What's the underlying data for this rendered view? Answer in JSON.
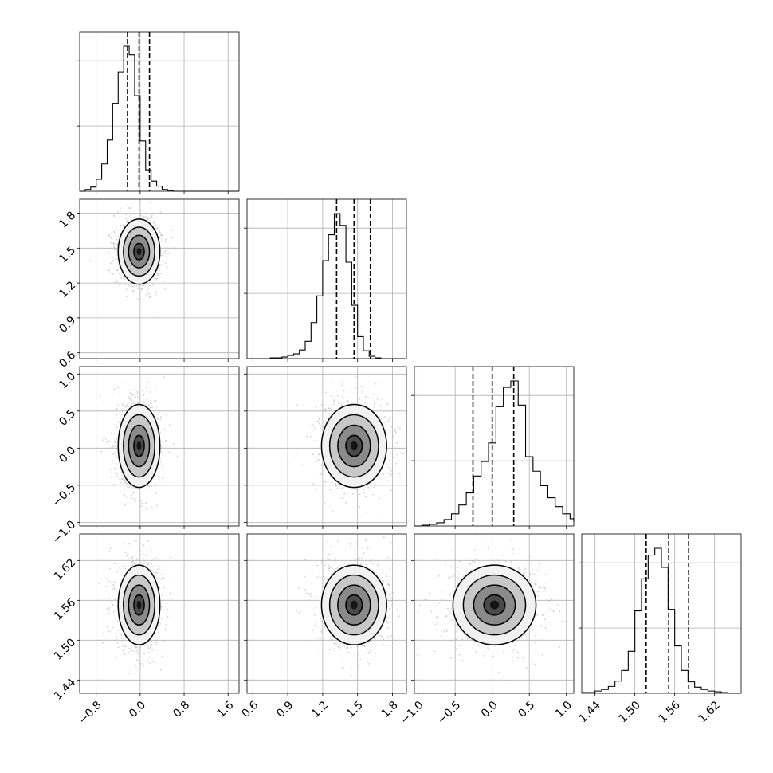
{
  "chart_data": {
    "type": "corner",
    "n_params": 4,
    "grid": true,
    "colors": {
      "line": "#000000",
      "grid": "#b0b0b0",
      "points": "#bdbdbd"
    },
    "params": [
      {
        "range": [
          -1.1,
          1.8
        ],
        "ticks": [
          -0.8,
          0.0,
          0.8,
          1.6
        ],
        "tick_labels": [
          "−0.8",
          "0.0",
          "0.8",
          "1.6"
        ],
        "mean": -0.02,
        "sd": 0.19,
        "quantiles": [
          -0.23,
          -0.02,
          0.17
        ]
      },
      {
        "range": [
          0.55,
          1.92
        ],
        "ticks": [
          0.6,
          0.9,
          1.2,
          1.5,
          1.8
        ],
        "tick_labels": [
          "0.6",
          "0.9",
          "1.2",
          "1.5",
          "1.8"
        ],
        "mean": 1.47,
        "sd": 0.14,
        "quantiles": [
          1.32,
          1.47,
          1.61
        ]
      },
      {
        "range": [
          -1.05,
          1.1
        ],
        "ticks": [
          -1.0,
          -0.5,
          0.0,
          0.5,
          1.0
        ],
        "tick_labels": [
          "−1.0",
          "−0.5",
          "0.0",
          "0.5",
          "1.0"
        ],
        "mean": 0.03,
        "sd": 0.28,
        "quantiles": [
          -0.26,
          0.0,
          0.29
        ]
      },
      {
        "range": [
          1.42,
          1.66
        ],
        "ticks": [
          1.44,
          1.5,
          1.56,
          1.62
        ],
        "tick_labels": [
          "1.44",
          "1.50",
          "1.56",
          "1.62"
        ],
        "mean": 1.553,
        "sd": 0.03,
        "quantiles": [
          1.517,
          1.551,
          1.581
        ]
      }
    ],
    "histograms": [
      {
        "param": 0,
        "bin_edges_start": -1.1,
        "bin_width": 0.1,
        "counts": [
          0,
          2,
          5,
          14,
          32,
          60,
          103,
          140,
          170,
          160,
          112,
          59,
          25,
          12,
          6,
          2,
          1,
          0,
          0,
          0,
          0,
          0,
          0,
          0,
          0,
          0,
          0,
          0,
          0
        ]
      },
      {
        "param": 1,
        "bin_edges_start": 0.55,
        "bin_width": 0.05,
        "counts": [
          0,
          0,
          0,
          0,
          1,
          1,
          2,
          4,
          6,
          11,
          22,
          46,
          80,
          125,
          158,
          185,
          170,
          123,
          68,
          28,
          10,
          3,
          1,
          0,
          0,
          0,
          0
        ]
      },
      {
        "param": 2,
        "bin_edges_start": -1.05,
        "bin_width": 0.1,
        "counts": [
          0,
          1,
          2,
          4,
          8,
          15,
          26,
          41,
          62,
          80,
          103,
          148,
          172,
          180,
          150,
          86,
          68,
          50,
          35,
          24,
          15,
          9,
          5
        ]
      },
      {
        "param": 3,
        "bin_edges_start": 1.42,
        "bin_width": 0.01,
        "counts": [
          1,
          1,
          3,
          5,
          9,
          16,
          30,
          55,
          108,
          150,
          181,
          190,
          165,
          110,
          62,
          30,
          15,
          8,
          5,
          3,
          2,
          1,
          0,
          0
        ]
      }
    ],
    "scatter_pairs": [
      {
        "x_param": 0,
        "y_param": 1
      },
      {
        "x_param": 0,
        "y_param": 2
      },
      {
        "x_param": 1,
        "y_param": 2
      },
      {
        "x_param": 0,
        "y_param": 3
      },
      {
        "x_param": 1,
        "y_param": 3
      },
      {
        "x_param": 2,
        "y_param": 3
      }
    ],
    "contour_levels_sigma": [
      0.5,
      1.0,
      1.5,
      2.0
    ]
  }
}
